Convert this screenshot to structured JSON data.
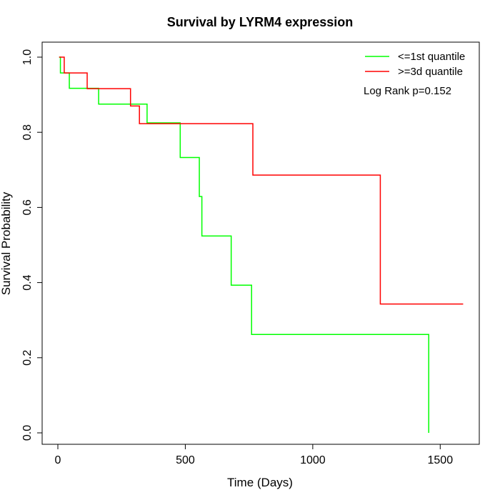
{
  "chart_data": {
    "type": "line",
    "subtype": "kaplan-meier-step",
    "title": "Survival by LYRM4 expression",
    "xlabel": "Time (Days)",
    "ylabel": "Survival Probability",
    "xlim": [
      0,
      1650
    ],
    "ylim": [
      0,
      1.0
    ],
    "xticks": [
      0,
      500,
      1000,
      1500
    ],
    "yticks": [
      "0.0",
      "0.2",
      "0.4",
      "0.6",
      "0.8",
      "1.0"
    ],
    "grid": false,
    "legend_position": "top-right",
    "annotation": "Log Rank p=0.152",
    "series": [
      {
        "name": "<=1st quantile",
        "color": "#00ff00",
        "steps": [
          [
            5,
            1.0
          ],
          [
            10,
            0.958
          ],
          [
            45,
            0.917
          ],
          [
            160,
            0.875
          ],
          [
            350,
            0.825
          ],
          [
            480,
            0.733
          ],
          [
            555,
            0.629
          ],
          [
            565,
            0.524
          ],
          [
            680,
            0.393
          ],
          [
            760,
            0.262
          ],
          [
            1455,
            0.0
          ]
        ]
      },
      {
        "name": ">=3d quantile",
        "color": "#ff0000",
        "steps": [
          [
            5,
            1.0
          ],
          [
            25,
            0.958
          ],
          [
            115,
            0.916
          ],
          [
            285,
            0.87
          ],
          [
            320,
            0.823
          ],
          [
            765,
            0.686
          ],
          [
            1265,
            0.343
          ],
          [
            1590,
            0.343
          ]
        ]
      }
    ]
  }
}
